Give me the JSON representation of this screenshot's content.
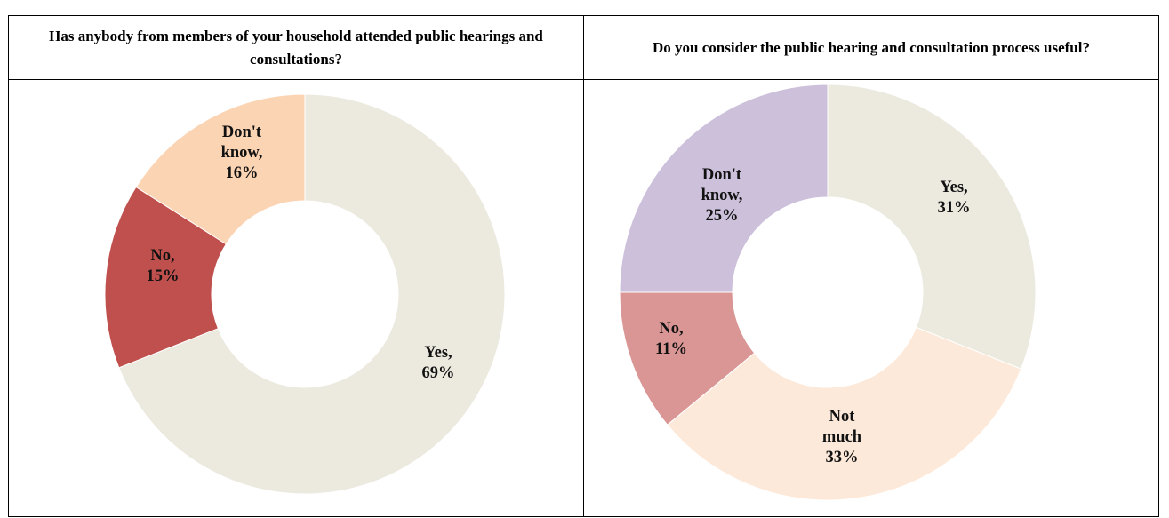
{
  "chart_data": [
    {
      "type": "pie",
      "title": "Has anybody from members of your household attended public hearings and consultations?",
      "slices": [
        {
          "label": "Yes,",
          "pct_text": "69%",
          "value": 69,
          "color": "#ECE9DF"
        },
        {
          "label": "No,",
          "pct_text": "15%",
          "value": 15,
          "color": "#C0504D"
        },
        {
          "label": "Don't know,",
          "pct_text": "16%",
          "value": 16,
          "color": "#FBD4B4"
        }
      ]
    },
    {
      "type": "pie",
      "title": "Do you consider the public hearing and consultation process useful?",
      "slices": [
        {
          "label": "Yes,",
          "pct_text": "31%",
          "value": 31,
          "color": "#ECE9DF"
        },
        {
          "label": "Not much",
          "pct_text": "33%",
          "value": 33,
          "color": "#FDE9D9"
        },
        {
          "label": "No,",
          "pct_text": "11%",
          "value": 11,
          "color": "#D99694"
        },
        {
          "label": "Don't know,",
          "pct_text": "25%",
          "value": 25,
          "color": "#CCC0DA"
        }
      ]
    }
  ]
}
